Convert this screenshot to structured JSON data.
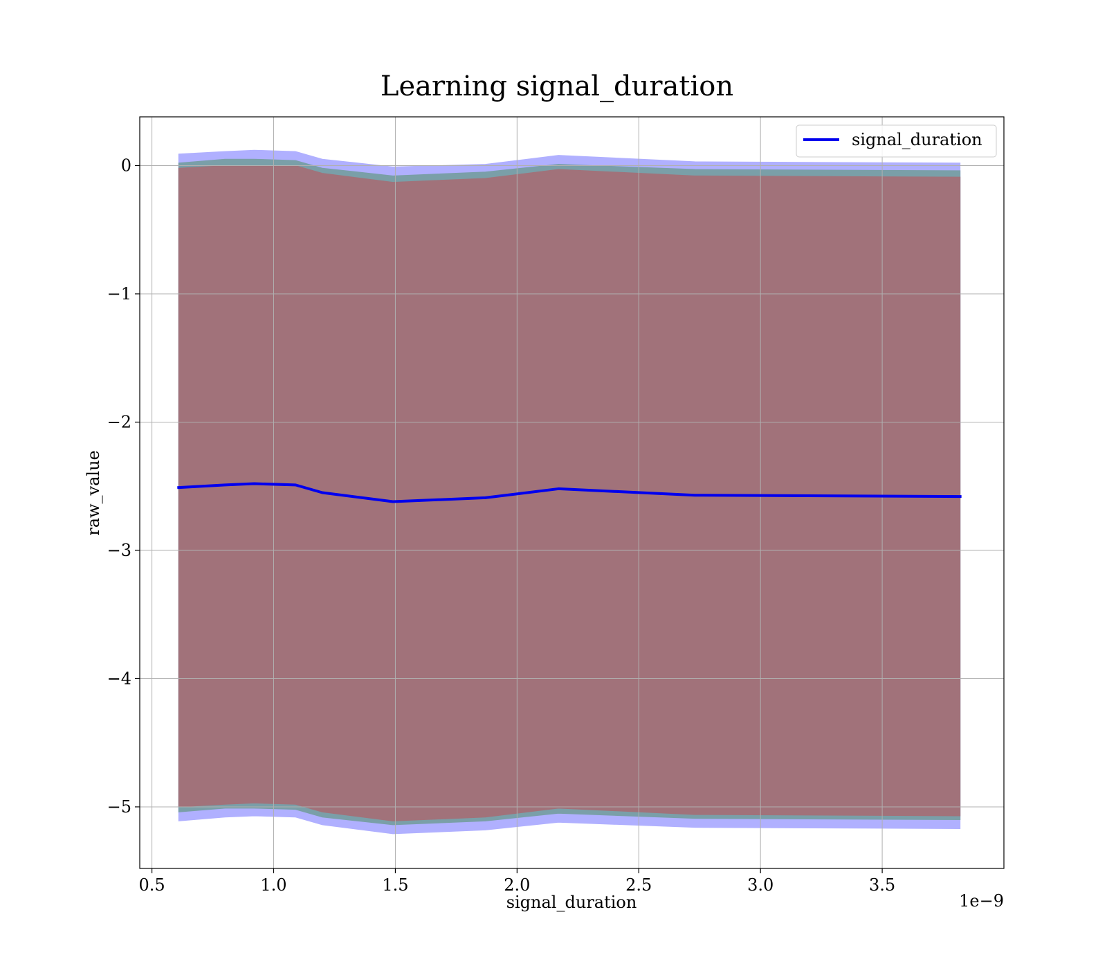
{
  "chart_data": {
    "type": "line",
    "title": "Learning signal_duration",
    "xlabel": "signal_duration",
    "ylabel": "raw_value",
    "x_offset_label": "1e−9",
    "xlim": [
      0.45,
      4.0
    ],
    "ylim": [
      -5.48,
      0.38
    ],
    "x_ticks": [
      {
        "value": 0.5,
        "label": "0.5"
      },
      {
        "value": 1.0,
        "label": "1.0"
      },
      {
        "value": 1.5,
        "label": "1.5"
      },
      {
        "value": 2.0,
        "label": "2.0"
      },
      {
        "value": 2.5,
        "label": "2.5"
      },
      {
        "value": 3.0,
        "label": "3.0"
      },
      {
        "value": 3.5,
        "label": "3.5"
      }
    ],
    "y_ticks": [
      {
        "value": 0,
        "label": "0"
      },
      {
        "value": -1,
        "label": "−1"
      },
      {
        "value": -2,
        "label": "−2"
      },
      {
        "value": -3,
        "label": "−3"
      },
      {
        "value": -4,
        "label": "−4"
      },
      {
        "value": -5,
        "label": "−5"
      }
    ],
    "grid": true,
    "legend_position": "top-right",
    "x": [
      0.61,
      0.8,
      0.92,
      1.09,
      1.2,
      1.49,
      1.87,
      2.17,
      2.73,
      3.82
    ],
    "series": [
      {
        "name": "signal_duration",
        "color": "#0000ee",
        "values": [
          -2.51,
          -2.49,
          -2.48,
          -2.49,
          -2.55,
          -2.62,
          -2.59,
          -2.52,
          -2.57,
          -2.58
        ]
      }
    ],
    "bands": [
      {
        "color": "#b0b0ff",
        "opacity": 1,
        "upper": [
          0.09,
          0.11,
          0.12,
          0.11,
          0.05,
          -0.01,
          0.01,
          0.08,
          0.03,
          0.02
        ],
        "lower": [
          -5.11,
          -5.08,
          -5.07,
          -5.08,
          -5.14,
          -5.21,
          -5.18,
          -5.12,
          -5.16,
          -5.17
        ]
      },
      {
        "color": "#7a9fa8",
        "opacity": 1,
        "upper": [
          0.02,
          0.05,
          0.05,
          0.04,
          -0.02,
          -0.08,
          -0.05,
          0.01,
          -0.03,
          -0.04
        ],
        "lower": [
          -5.04,
          -5.01,
          -5.01,
          -5.02,
          -5.08,
          -5.14,
          -5.11,
          -5.05,
          -5.09,
          -5.1
        ]
      },
      {
        "color": "#a1727a",
        "opacity": 1,
        "upper": [
          -0.02,
          0.0,
          0.0,
          -0.0,
          -0.06,
          -0.13,
          -0.1,
          -0.03,
          -0.08,
          -0.09
        ],
        "lower": [
          -5.0,
          -4.98,
          -4.97,
          -4.98,
          -5.04,
          -5.11,
          -5.08,
          -5.01,
          -5.06,
          -5.07
        ]
      }
    ]
  }
}
